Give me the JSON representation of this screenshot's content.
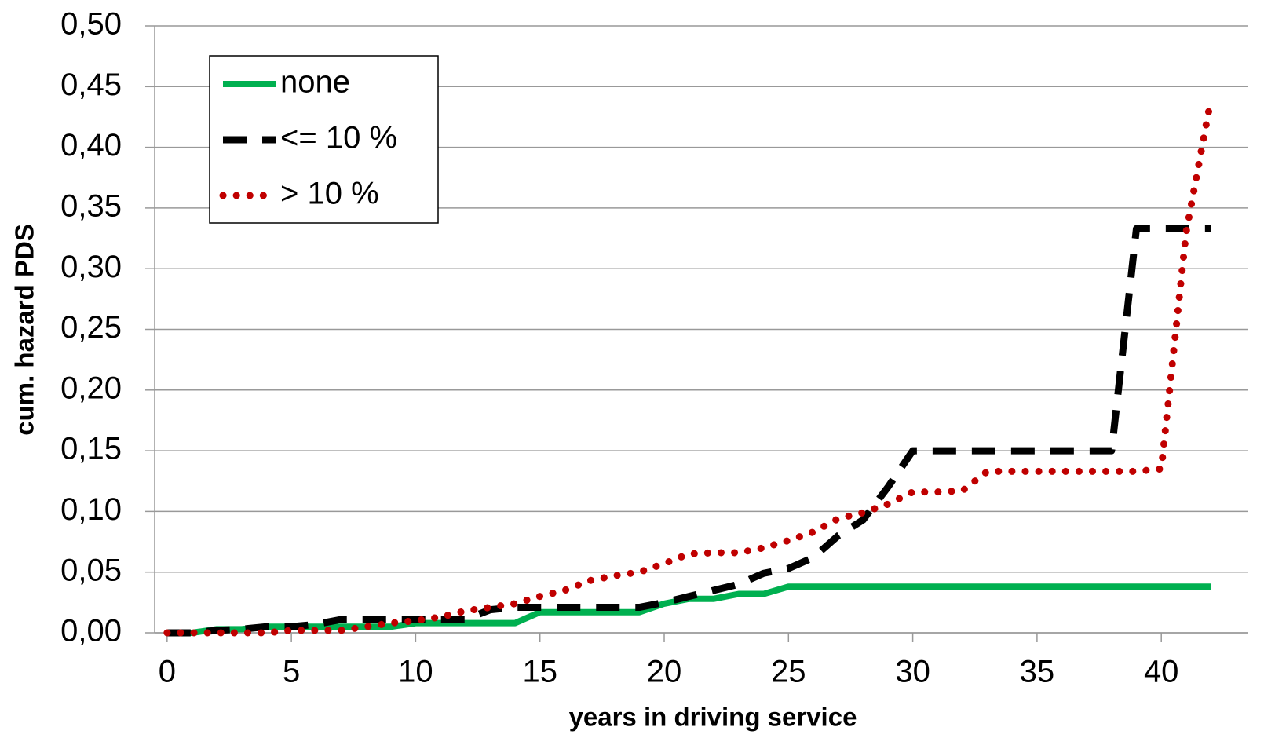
{
  "chart_data": {
    "type": "line",
    "x_label": "years in driving service",
    "y_label": "cum. hazard PDS",
    "x": [
      0,
      1,
      2,
      3,
      4,
      5,
      6,
      7,
      8,
      9,
      10,
      11,
      12,
      13,
      14,
      15,
      16,
      17,
      18,
      19,
      20,
      21,
      22,
      23,
      24,
      25,
      26,
      27,
      28,
      29,
      30,
      31,
      32,
      33,
      34,
      35,
      36,
      37,
      38,
      39,
      40,
      41,
      42
    ],
    "series": [
      {
        "name": "none",
        "color": "#00b050",
        "style": "solid",
        "values": [
          0,
          0,
          0.003,
          0.003,
          0.005,
          0.005,
          0.005,
          0.005,
          0.005,
          0.005,
          0.008,
          0.008,
          0.008,
          0.008,
          0.008,
          0.017,
          0.017,
          0.017,
          0.017,
          0.017,
          0.024,
          0.028,
          0.028,
          0.032,
          0.032,
          0.038,
          0.038,
          0.038,
          0.038,
          0.038,
          0.038,
          0.038,
          0.038,
          0.038,
          0.038,
          0.038,
          0.038,
          0.038,
          0.038,
          0.038,
          0.038,
          0.038,
          0.038
        ]
      },
      {
        "name": "<= 10 %",
        "color": "#000000",
        "style": "dashed",
        "values": [
          0,
          0,
          0.002,
          0.003,
          0.005,
          0.005,
          0.007,
          0.011,
          0.011,
          0.011,
          0.011,
          0.011,
          0.011,
          0.019,
          0.021,
          0.021,
          0.021,
          0.021,
          0.021,
          0.021,
          0.025,
          0.03,
          0.035,
          0.04,
          0.049,
          0.053,
          0.062,
          0.08,
          0.093,
          0.12,
          0.15,
          0.15,
          0.15,
          0.15,
          0.15,
          0.15,
          0.15,
          0.15,
          0.15,
          0.333,
          0.333,
          0.333,
          0.333
        ]
      },
      {
        "name": "> 10 %",
        "color": "#c00000",
        "style": "dotted",
        "values": [
          0,
          0,
          0,
          0,
          0,
          0.002,
          0.002,
          0.002,
          0.005,
          0.008,
          0.01,
          0.013,
          0.018,
          0.021,
          0.024,
          0.03,
          0.035,
          0.043,
          0.047,
          0.05,
          0.057,
          0.065,
          0.066,
          0.066,
          0.07,
          0.076,
          0.083,
          0.094,
          0.099,
          0.106,
          0.116,
          0.116,
          0.117,
          0.133,
          0.133,
          0.133,
          0.133,
          0.133,
          0.133,
          0.133,
          0.135,
          0.33,
          0.44
        ]
      }
    ],
    "xlim": [
      -0.5,
      43.5
    ],
    "ylim": [
      0,
      0.5
    ],
    "xticks": [
      0,
      5,
      10,
      15,
      20,
      25,
      30,
      35,
      40
    ],
    "yticks": [
      {
        "value": 0,
        "label": "0,00"
      },
      {
        "value": 0.05,
        "label": "0,05"
      },
      {
        "value": 0.1,
        "label": "0,10"
      },
      {
        "value": 0.15,
        "label": "0,15"
      },
      {
        "value": 0.2,
        "label": "0,20"
      },
      {
        "value": 0.25,
        "label": "0,25"
      },
      {
        "value": 0.3,
        "label": "0,30"
      },
      {
        "value": 0.35,
        "label": "0,35"
      },
      {
        "value": 0.4,
        "label": "0,40"
      },
      {
        "value": 0.45,
        "label": "0,45"
      },
      {
        "value": 0.5,
        "label": "0,50"
      }
    ],
    "grid": true,
    "legend": "upper left"
  }
}
